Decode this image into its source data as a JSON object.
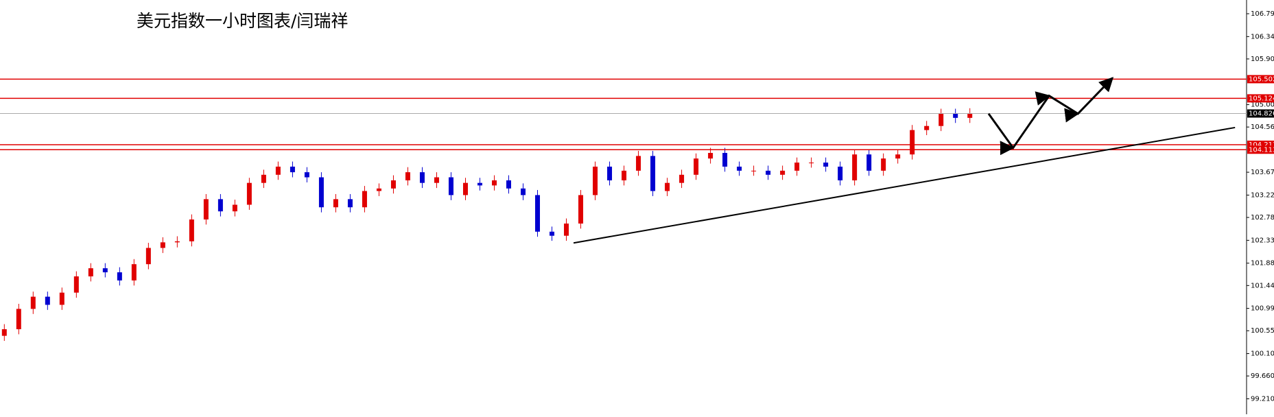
{
  "chart_data": {
    "type": "candlestick",
    "title": "美元指数一小时图表/闫瑞祥",
    "up_color": "#e00000",
    "down_color": "#0000d0",
    "open": [
      100.45,
      100.58,
      100.98,
      101.22,
      101.06,
      101.3,
      101.62,
      101.78,
      101.7,
      101.54,
      101.86,
      102.18,
      102.29,
      102.31,
      102.74,
      103.14,
      102.9,
      103.03,
      103.46,
      103.62,
      103.78,
      103.67,
      103.57,
      102.98,
      103.14,
      102.98,
      103.3,
      103.35,
      103.51,
      103.67,
      103.46,
      103.57,
      103.22,
      103.46,
      103.41,
      103.51,
      103.35,
      103.22,
      102.5,
      102.42,
      102.66,
      103.22,
      103.78,
      103.51,
      103.7,
      103.99,
      103.3,
      103.46,
      103.62,
      103.94,
      104.05,
      103.78,
      103.7,
      103.7,
      103.62,
      103.7,
      103.86,
      103.86,
      103.78,
      103.51,
      104.02,
      103.7,
      103.94,
      104.02,
      104.5,
      104.58,
      104.82,
      104.74
    ],
    "high": [
      100.68,
      101.08,
      101.32,
      101.32,
      101.4,
      101.72,
      101.88,
      101.88,
      101.8,
      101.96,
      102.28,
      102.39,
      102.41,
      102.84,
      103.24,
      103.24,
      103.13,
      103.56,
      103.72,
      103.88,
      103.88,
      103.77,
      103.67,
      103.24,
      103.24,
      103.4,
      103.45,
      103.61,
      103.77,
      103.77,
      103.67,
      103.67,
      103.56,
      103.56,
      103.61,
      103.61,
      103.45,
      103.32,
      102.6,
      102.76,
      103.32,
      103.88,
      103.88,
      103.8,
      104.09,
      104.09,
      103.56,
      103.72,
      104.04,
      104.15,
      104.15,
      103.88,
      103.8,
      103.8,
      103.8,
      103.96,
      103.96,
      103.96,
      103.88,
      104.12,
      104.12,
      104.04,
      104.12,
      104.6,
      104.68,
      104.92,
      104.92,
      104.93
    ],
    "low": [
      100.35,
      100.48,
      100.88,
      100.96,
      100.96,
      101.2,
      101.52,
      101.6,
      101.44,
      101.44,
      101.76,
      102.08,
      102.19,
      102.21,
      102.64,
      102.8,
      102.8,
      102.93,
      103.36,
      103.52,
      103.57,
      103.47,
      102.88,
      102.88,
      102.88,
      102.88,
      103.2,
      103.25,
      103.41,
      103.36,
      103.36,
      103.12,
      103.12,
      103.31,
      103.31,
      103.25,
      103.12,
      102.4,
      102.32,
      102.32,
      102.56,
      103.12,
      103.41,
      103.41,
      103.6,
      103.2,
      103.2,
      103.36,
      103.52,
      103.84,
      103.68,
      103.6,
      103.6,
      103.52,
      103.52,
      103.6,
      103.76,
      103.68,
      103.41,
      103.41,
      103.6,
      103.6,
      103.84,
      103.92,
      104.4,
      104.48,
      104.64,
      104.64
    ],
    "close": [
      100.58,
      100.98,
      101.22,
      101.06,
      101.3,
      101.62,
      101.78,
      101.7,
      101.54,
      101.86,
      102.18,
      102.29,
      102.31,
      102.74,
      103.14,
      102.9,
      103.03,
      103.46,
      103.62,
      103.78,
      103.67,
      103.57,
      102.98,
      103.14,
      102.98,
      103.3,
      103.35,
      103.51,
      103.67,
      103.46,
      103.57,
      103.22,
      103.46,
      103.41,
      103.51,
      103.35,
      103.22,
      102.5,
      102.42,
      102.66,
      103.22,
      103.78,
      103.51,
      103.7,
      103.99,
      103.3,
      103.46,
      103.62,
      103.94,
      104.05,
      103.78,
      103.7,
      103.7,
      103.62,
      103.7,
      103.86,
      103.86,
      103.78,
      103.51,
      104.02,
      103.7,
      103.94,
      104.02,
      104.5,
      104.58,
      104.82,
      104.74,
      104.83
    ],
    "xlim": [
      -0.3,
      86.2
    ],
    "ylim": [
      98.906,
      107.06
    ],
    "yticks": [
      {
        "value": 106.79,
        "label": "106.790"
      },
      {
        "value": 106.34,
        "label": "106.340"
      },
      {
        "value": 105.9,
        "label": "105.900"
      },
      {
        "value": 105.0,
        "label": "105.000"
      },
      {
        "value": 104.56,
        "label": "104.560"
      },
      {
        "value": 103.67,
        "label": "103.670"
      },
      {
        "value": 103.22,
        "label": "103.220"
      },
      {
        "value": 102.78,
        "label": "102.780"
      },
      {
        "value": 102.33,
        "label": "102.330"
      },
      {
        "value": 101.88,
        "label": "101.880"
      },
      {
        "value": 101.44,
        "label": "101.440"
      },
      {
        "value": 100.99,
        "label": "100.990"
      },
      {
        "value": 100.55,
        "label": "100.550"
      },
      {
        "value": 100.1,
        "label": "100.100"
      },
      {
        "value": 99.66,
        "label": "99.660"
      },
      {
        "value": 99.21,
        "label": "99.210"
      }
    ],
    "levels": [
      105.502,
      105.124,
      104.211,
      104.113
    ],
    "level_color": "#e00000",
    "current_price": 104.826,
    "trendline": {
      "x": [
        39.5,
        85.4
      ],
      "y": [
        102.278,
        104.55
      ]
    },
    "projection": {
      "x": [
        68.3,
        70.0,
        72.5,
        74.5,
        76.9
      ],
      "y": [
        104.822,
        104.15,
        105.174,
        104.822,
        105.526
      ]
    }
  }
}
